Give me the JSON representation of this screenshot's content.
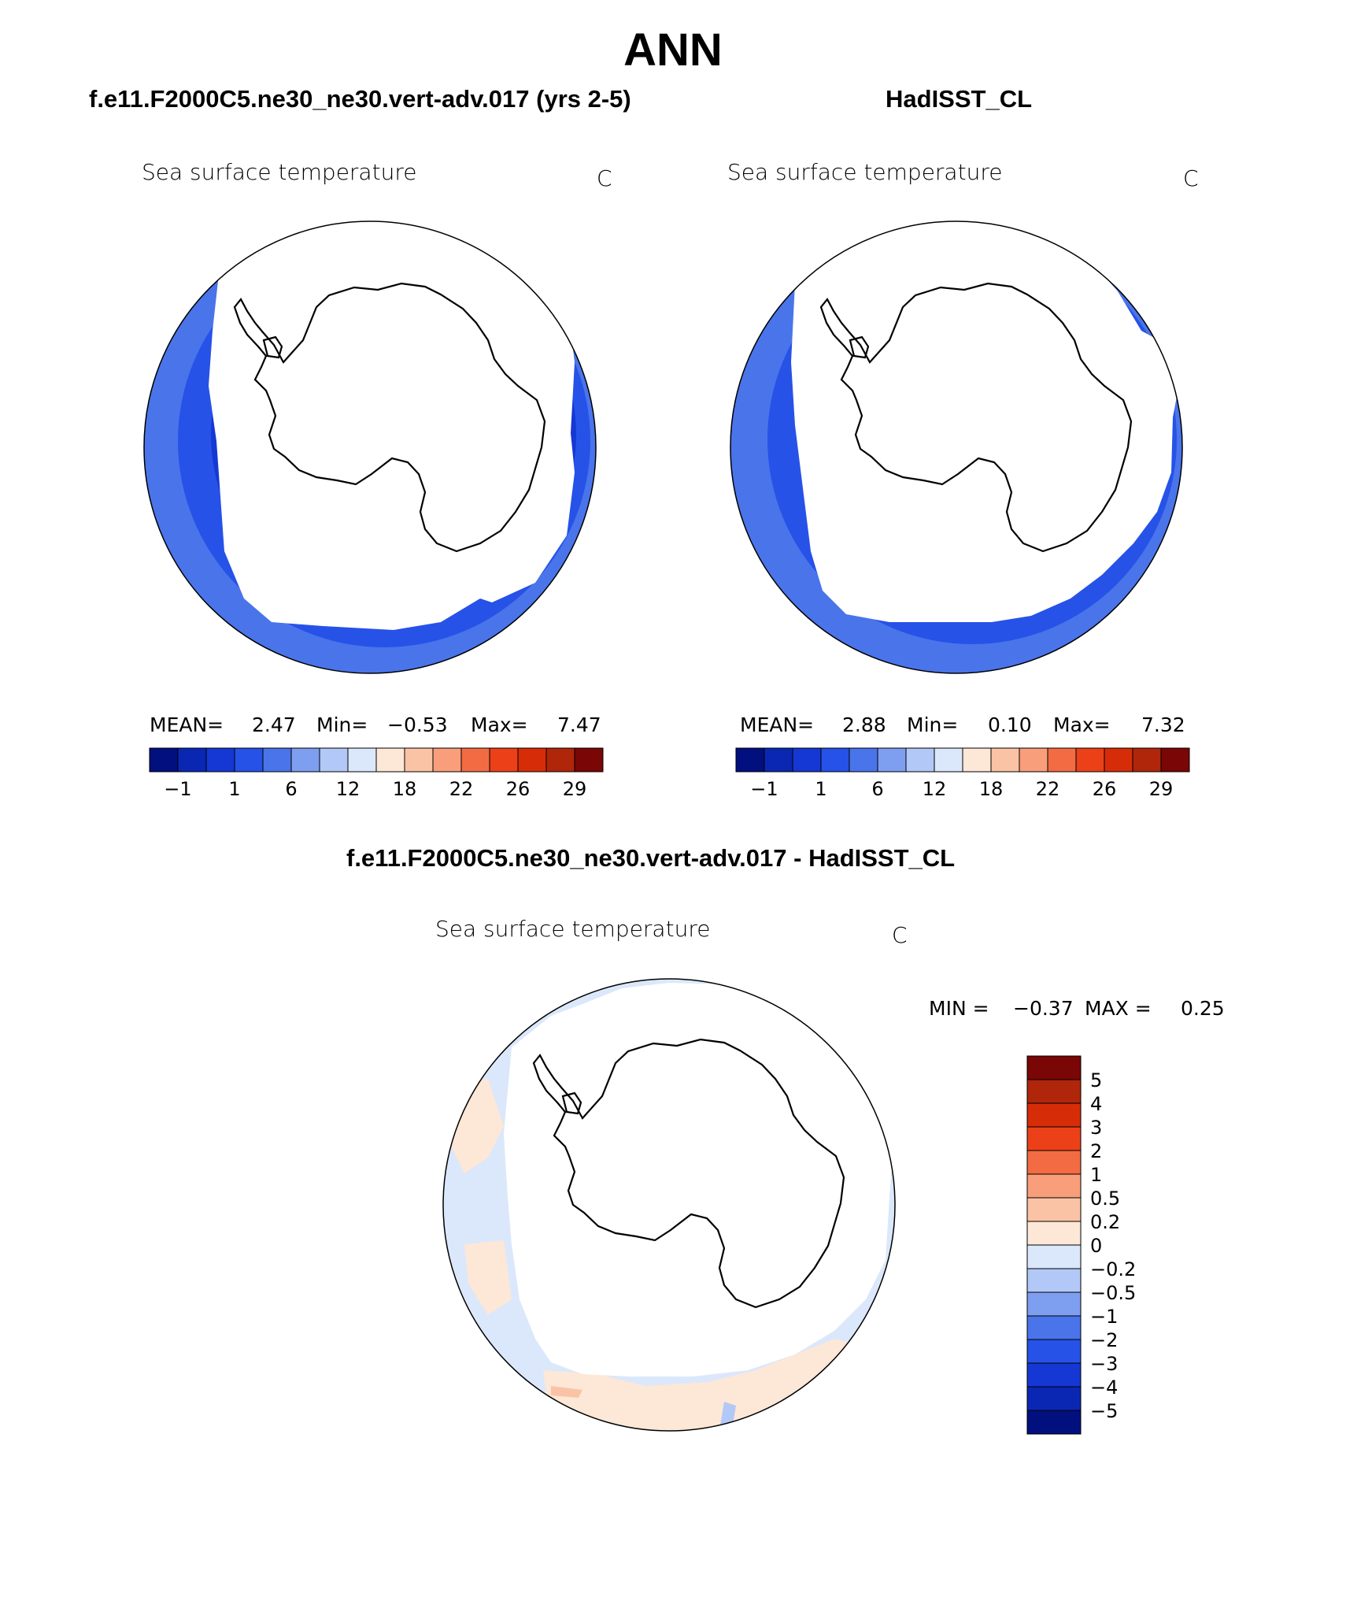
{
  "title": "ANN",
  "palette": [
    "#020f7e",
    "#0a27b4",
    "#1538d4",
    "#2652e8",
    "#4a74ea",
    "#7e9ef0",
    "#b2c8f6",
    "#dbe8fb",
    "#fde7d6",
    "#fbc3a6",
    "#f99e7a",
    "#f36b43",
    "#ec4118",
    "#d62d08",
    "#b0260a",
    "#7a0606"
  ],
  "panels": {
    "left": {
      "case_title": "f.e11.F2000C5.ne30_ne30.vert-adv.017 (yrs 2-5)",
      "variable": "Sea surface temperature",
      "units": "C",
      "stats": {
        "mean_label": "MEAN=",
        "mean": "2.47",
        "min_label": "Min=",
        "min": "−0.53",
        "max_label": "Max=",
        "max": "7.47"
      },
      "ticks": [
        "−1",
        "1",
        "6",
        "12",
        "18",
        "22",
        "26",
        "29"
      ]
    },
    "right": {
      "case_title": "HadISST_CL",
      "variable": "Sea surface temperature",
      "units": "C",
      "stats": {
        "mean_label": "MEAN=",
        "mean": "2.88",
        "min_label": "Min=",
        "min": "0.10",
        "max_label": "Max=",
        "max": "7.32"
      },
      "ticks": [
        "−1",
        "1",
        "6",
        "12",
        "18",
        "22",
        "26",
        "29"
      ]
    },
    "diff": {
      "case_title": "f.e11.F2000C5.ne30_ne30.vert-adv.017 - HadISST_CL",
      "variable": "Sea surface temperature",
      "units": "C",
      "stats": {
        "min_label": "MIN =",
        "min": "−0.37",
        "max_label": "MAX =",
        "max": "0.25"
      },
      "ticks": [
        "5",
        "4",
        "3",
        "2",
        "1",
        "0.5",
        "0.2",
        "0",
        "−0.2",
        "−0.5",
        "−1",
        "−2",
        "−3",
        "−4",
        "−5"
      ]
    }
  }
}
